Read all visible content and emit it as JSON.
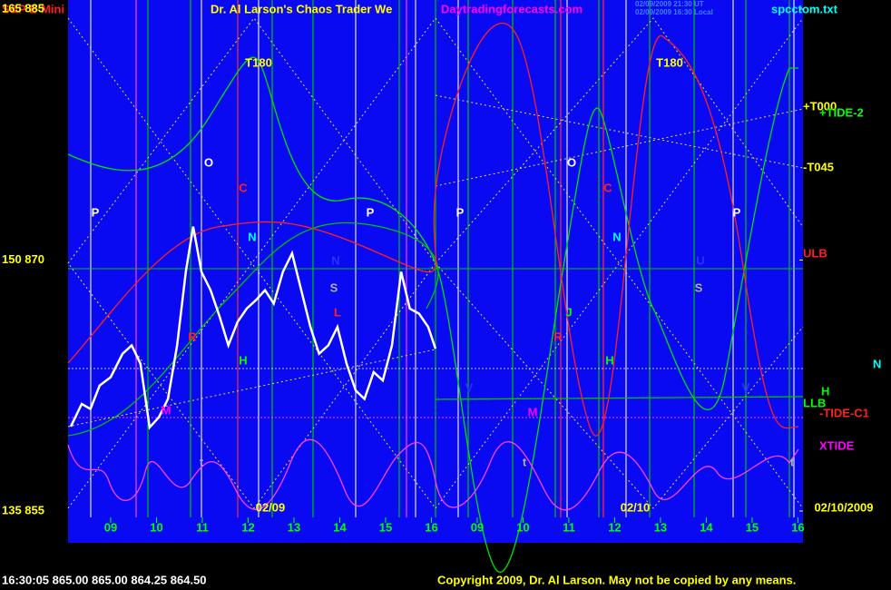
{
  "header": {
    "instrument": "S&P E-Mini",
    "title": "Dr. Al Larson's Chaos Trader We",
    "site": "Daytradingforecasts.com",
    "time_ut": "02/09/2009 21:30 UT",
    "time_local": "02/09/2009 16:30 Local",
    "file": "spcctom.txt"
  },
  "footer": {
    "quote": "16:30:05  865.00 865.00 864.25 864.50",
    "copyright": "Copyright 2009, Dr. Al Larson. May not be copied by any means."
  },
  "chart_data": {
    "type": "line",
    "x": [
      -0.87,
      -0.63,
      -0.44,
      -0.24,
      0,
      0.26,
      0.46,
      0.65,
      0.85,
      1.05,
      1.25,
      1.45,
      1.64,
      1.8,
      1.98,
      2.18,
      2.38,
      2.57,
      2.77,
      2.97,
      3.17,
      3.37,
      3.56,
      3.76,
      3.96,
      4.16,
      4.36,
      4.55,
      4.75,
      4.95,
      5.15,
      5.35,
      5.54,
      5.74,
      5.94,
      6.14,
      6.34,
      6.53,
      6.73,
      6.93,
      7.09
    ],
    "series": [
      {
        "name": "S&P E-Mini",
        "color": "#ffffff",
        "values": [
          860.05,
          861.4,
          861.1,
          862.5,
          863.0,
          864.4,
          864.9,
          863.8,
          860.0,
          860.6,
          861.7,
          864.9,
          869.3,
          872.0,
          869.3,
          868.2,
          866.6,
          864.9,
          866.3,
          867.1,
          867.6,
          868.2,
          867.4,
          869.3,
          870.4,
          868.2,
          866.0,
          864.4,
          864.9,
          866.0,
          863.8,
          862.2,
          861.7,
          863.3,
          862.8,
          864.9,
          869.3,
          867.1,
          866.8,
          866.0,
          864.7
        ]
      }
    ],
    "xlim": [
      -0.93,
      15.11
    ],
    "xticks": [
      {
        "value": 0,
        "label": "09"
      },
      {
        "value": 1,
        "label": "10"
      },
      {
        "value": 2,
        "label": "11"
      },
      {
        "value": 3,
        "label": "12"
      },
      {
        "value": 4,
        "label": "13"
      },
      {
        "value": 5,
        "label": "14"
      },
      {
        "value": 6,
        "label": "15"
      },
      {
        "value": 7,
        "label": "16"
      },
      {
        "value": 8,
        "label": "09"
      },
      {
        "value": 9,
        "label": "10"
      },
      {
        "value": 10,
        "label": "11"
      },
      {
        "value": 11,
        "label": "12"
      },
      {
        "value": 12,
        "label": "13"
      },
      {
        "value": 13,
        "label": "14"
      },
      {
        "value": 14,
        "label": "15"
      },
      {
        "value": 15,
        "label": "16"
      }
    ],
    "ylim": [
      855,
      885
    ],
    "yticks": [
      {
        "value": 885,
        "label": "165  885"
      },
      {
        "value": 870,
        "label": "150  870"
      },
      {
        "value": 855,
        "label": "135  855"
      }
    ],
    "dates": [
      "02/09",
      "02/10",
      "02/10/2009"
    ],
    "annotations": [
      {
        "text": "P",
        "color": "#ffffff"
      },
      {
        "text": "O",
        "color": "#ffffff"
      },
      {
        "text": "C",
        "color": "#ff2020"
      },
      {
        "text": "T180",
        "color": "#ffff00"
      },
      {
        "text": "N",
        "color": "#00ffff"
      },
      {
        "text": "P",
        "color": "#ffffff"
      },
      {
        "text": "N",
        "color": "#3030ff"
      },
      {
        "text": "S",
        "color": "#b0b0b0"
      },
      {
        "text": "R",
        "color": "#ff2020"
      },
      {
        "text": "H",
        "color": "#00ff00"
      },
      {
        "text": "L",
        "color": "#ff2020"
      },
      {
        "text": "M",
        "color": "#ff00ff"
      },
      {
        "text": "t",
        "color": "#b0b0b0"
      },
      {
        "text": "P",
        "color": "#ffffff"
      },
      {
        "text": "O",
        "color": "#ffffff"
      },
      {
        "text": "C",
        "color": "#ff2020"
      },
      {
        "text": "T180",
        "color": "#ffff00"
      },
      {
        "text": "N",
        "color": "#00ffff"
      },
      {
        "text": "J",
        "color": "#00ff00"
      },
      {
        "text": "R",
        "color": "#ff2020"
      },
      {
        "text": "H",
        "color": "#00ff00"
      },
      {
        "text": "V",
        "color": "#3030ff"
      },
      {
        "text": "M",
        "color": "#ff00ff"
      },
      {
        "text": "t",
        "color": "#b0b0b0"
      },
      {
        "text": "P",
        "color": "#ffffff"
      },
      {
        "text": "U",
        "color": "#3030ff"
      },
      {
        "text": "S",
        "color": "#b0b0b0"
      },
      {
        "text": "V",
        "color": "#3030ff"
      },
      {
        "text": "t",
        "color": "#b0b0b0"
      },
      {
        "text": "+T000",
        "color": "#ffff00"
      },
      {
        "text": "+TIDE-2",
        "color": "#00ff00"
      },
      {
        "text": "-T045",
        "color": "#ffff00"
      },
      {
        "text": "ULB",
        "color": "#ff2020"
      },
      {
        "text": "N",
        "color": "#00ffff"
      },
      {
        "text": "H",
        "color": "#00ff00"
      },
      {
        "text": "LLB",
        "color": "#00ff00"
      },
      {
        "text": "-TIDE-C1",
        "color": "#ff2020"
      },
      {
        "text": "XTIDE",
        "color": "#ff00ff"
      }
    ]
  }
}
